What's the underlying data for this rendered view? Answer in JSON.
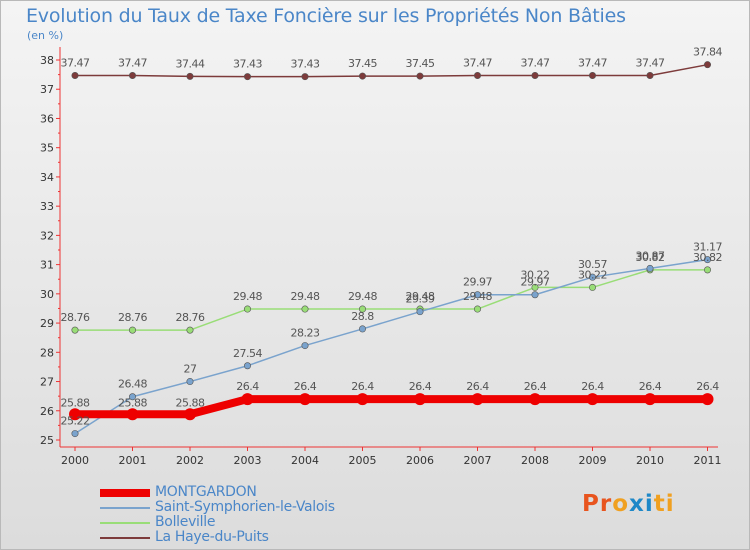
{
  "chart_data": {
    "type": "line",
    "title": "Evolution du Taux de Taxe Foncière sur les Propriétés Non Bâties",
    "subtitle": "(en %)",
    "x": [
      "2000",
      "2001",
      "2002",
      "2003",
      "2004",
      "2005",
      "2006",
      "2007",
      "2008",
      "2009",
      "2010",
      "2011"
    ],
    "ylim": [
      25,
      38
    ],
    "yticks": [
      "25",
      "26",
      "27",
      "28",
      "29",
      "30",
      "31",
      "32",
      "33",
      "34",
      "35",
      "36",
      "37",
      "38"
    ],
    "grid": false,
    "legend_position": "bottom-left",
    "series": [
      {
        "name": "MONTGARDON",
        "color": "#ee0000",
        "values": [
          25.88,
          25.88,
          25.88,
          26.4,
          26.4,
          26.4,
          26.4,
          26.4,
          26.4,
          26.4,
          26.4,
          26.4
        ],
        "labels": [
          "25.88",
          "25.88",
          "25.88",
          "26.4",
          "26.4",
          "26.4",
          "26.4",
          "26.4",
          "26.4",
          "26.4",
          "26.4",
          "26.4"
        ]
      },
      {
        "name": "Saint-Symphorien-le-Valois",
        "color": "#7aa3cd",
        "values": [
          25.22,
          26.48,
          27,
          27.54,
          28.23,
          28.8,
          29.39,
          29.97,
          29.97,
          30.57,
          30.87,
          31.17
        ],
        "labels": [
          "25.22",
          "26.48",
          "27",
          "27.54",
          "28.23",
          "28.8",
          "29.39",
          "29.97",
          "29.97",
          "30.57",
          "30.87",
          "31.17"
        ]
      },
      {
        "name": "Bolleville",
        "color": "#99dd77",
        "values": [
          28.76,
          28.76,
          28.76,
          29.48,
          29.48,
          29.48,
          29.48,
          29.48,
          30.22,
          30.22,
          30.82,
          30.82
        ],
        "labels": [
          "28.76",
          "28.76",
          "28.76",
          "29.48",
          "29.48",
          "29.48",
          "29.48",
          "29.48",
          "30.22",
          "30.22",
          "30.82",
          "30.82"
        ]
      },
      {
        "name": "La Haye-du-Puits",
        "color": "#7d3b3b",
        "values": [
          37.47,
          37.47,
          37.44,
          37.43,
          37.43,
          37.45,
          37.45,
          37.47,
          37.47,
          37.47,
          37.47,
          37.84
        ],
        "labels": [
          "37.47",
          "37.47",
          "37.44",
          "37.43",
          "37.43",
          "37.45",
          "37.45",
          "37.47",
          "37.47",
          "37.47",
          "37.47",
          "37.84"
        ]
      }
    ]
  },
  "legend": {
    "items": [
      "MONTGARDON",
      "Saint-Symphorien-le-Valois",
      "Bolleville",
      "La Haye-du-Puits"
    ]
  },
  "logo": {
    "text": "Proxiti",
    "colors": [
      "#e8541e",
      "#e8541e",
      "#f0a020",
      "#1e88c8",
      "#1e88c8",
      "#f0a020",
      "#f0a020"
    ]
  }
}
